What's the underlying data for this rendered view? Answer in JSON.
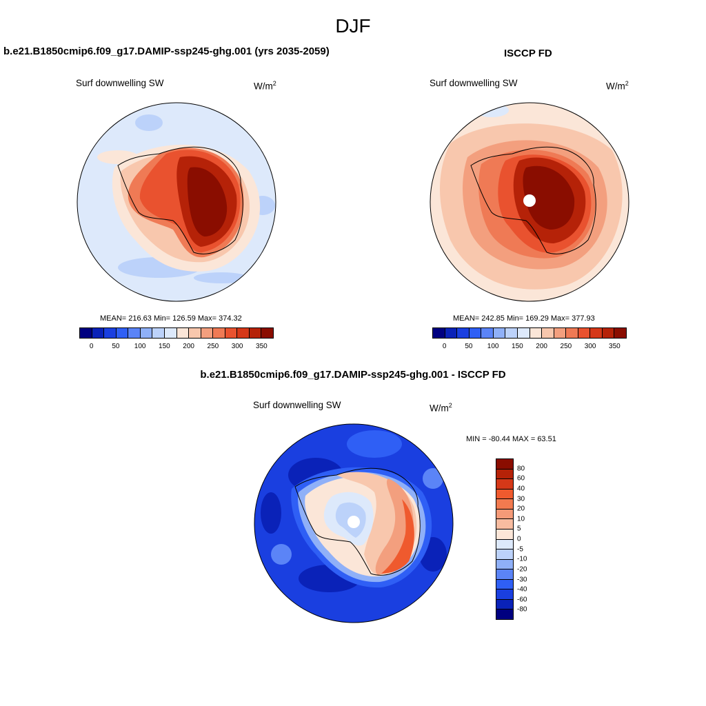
{
  "season": "DJF",
  "panel_left": {
    "case": "b.e21.B1850cmip6.f09_g17.DAMIP-ssp245-ghg.001 (yrs 2035-2059)",
    "variable": "Surf downwelling SW",
    "units_base": "W/m",
    "units_exp": "2",
    "stats": "MEAN= 216.63  Min= 126.59  Max= 374.32"
  },
  "panel_right": {
    "case": "ISCCP FD",
    "variable": "Surf downwelling SW",
    "units_base": "W/m",
    "units_exp": "2",
    "stats": "MEAN= 242.85  Min= 169.29  Max= 377.93"
  },
  "panel_diff": {
    "case": "b.e21.B1850cmip6.f09_g17.DAMIP-ssp245-ghg.001 - ISCCP FD",
    "variable": "Surf downwelling SW",
    "units_base": "W/m",
    "units_exp": "2",
    "stats": "MIN = -80.44 MAX =  63.51"
  },
  "colorbar_main": {
    "colors": [
      "#000080",
      "#0a22b8",
      "#1a3fe0",
      "#2f5ff5",
      "#5b84f7",
      "#8fb0f8",
      "#bcd2fa",
      "#dde9fb",
      "#fbe6d8",
      "#f8c7ad",
      "#f39f7e",
      "#ef7a55",
      "#e9522f",
      "#d53818",
      "#b52208",
      "#8a0d00"
    ],
    "ticks": [
      "0",
      "50",
      "100",
      "150",
      "200",
      "250",
      "300",
      "350"
    ]
  },
  "colorbar_diff": {
    "colors": [
      "#8a0d00",
      "#b52208",
      "#d53818",
      "#ef5a2e",
      "#f27a4f",
      "#f59a78",
      "#f8bca0",
      "#fce6d8",
      "#dde9fb",
      "#bcd2fa",
      "#8fb0f8",
      "#5b84f7",
      "#2f5ff5",
      "#1a3fe0",
      "#0a22b8",
      "#000080"
    ],
    "ticks": [
      "80",
      "60",
      "40",
      "30",
      "20",
      "10",
      "5",
      "0",
      "-5",
      "-10",
      "-20",
      "-30",
      "-40",
      "-60",
      "-80"
    ]
  }
}
